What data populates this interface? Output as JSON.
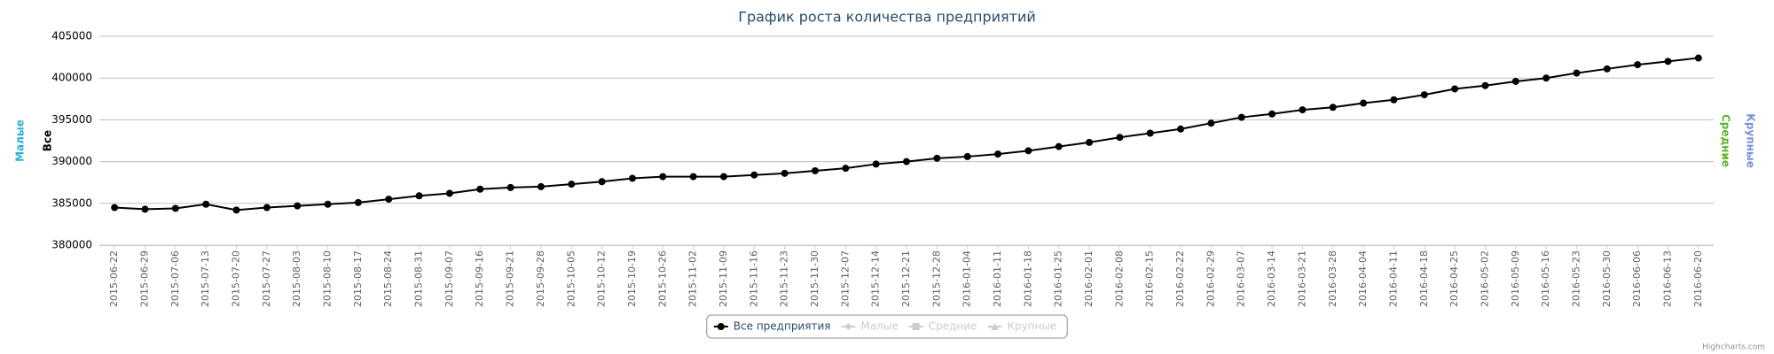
{
  "chart_data": {
    "type": "line",
    "title": "График роста количества предприятий",
    "categories": [
      "2015-06-22",
      "2015-06-29",
      "2015-07-06",
      "2015-07-13",
      "2015-07-20",
      "2015-07-27",
      "2015-08-03",
      "2015-08-10",
      "2015-08-17",
      "2015-08-24",
      "2015-08-31",
      "2015-09-07",
      "2015-09-16",
      "2015-09-21",
      "2015-09-28",
      "2015-10-05",
      "2015-10-12",
      "2015-10-19",
      "2015-10-26",
      "2015-11-02",
      "2015-11-09",
      "2015-11-16",
      "2015-11-23",
      "2015-11-30",
      "2015-12-07",
      "2015-12-14",
      "2015-12-21",
      "2015-12-28",
      "2016-01-04",
      "2016-01-11",
      "2016-01-18",
      "2016-01-25",
      "2016-02-01",
      "2016-02-08",
      "2016-02-15",
      "2016-02-22",
      "2016-02-29",
      "2016-03-07",
      "2016-03-14",
      "2016-03-21",
      "2016-03-28",
      "2016-04-04",
      "2016-04-11",
      "2016-04-18",
      "2016-04-25",
      "2016-05-02",
      "2016-05-09",
      "2016-05-16",
      "2016-05-23",
      "2016-05-30",
      "2016-06-06",
      "2016-06-13",
      "2016-06-20"
    ],
    "series": [
      {
        "name": "Все предприятия",
        "color": "#000000",
        "values": [
          384500,
          384300,
          384400,
          384900,
          384200,
          384500,
          384700,
          384900,
          385100,
          385500,
          385900,
          386200,
          386700,
          386900,
          387000,
          387300,
          387600,
          388000,
          388200,
          388200,
          388200,
          388400,
          388600,
          388900,
          389200,
          389700,
          390000,
          390400,
          390600,
          390900,
          391300,
          391800,
          392300,
          392900,
          393400,
          393900,
          394600,
          395300,
          395700,
          396200,
          396500,
          397000,
          397400,
          398000,
          398700,
          399100,
          399600,
          400000,
          400600,
          401100,
          401600,
          402000,
          402400
        ]
      }
    ],
    "hidden_series": [
      {
        "name": "Малые",
        "symbol": "diamond"
      },
      {
        "name": "Средние",
        "symbol": "square"
      },
      {
        "name": "Крупные",
        "symbol": "triangle"
      }
    ],
    "axis_titles": {
      "left": [
        {
          "text": "Малые",
          "color": "#2bb0d8"
        },
        {
          "text": "Все",
          "color": "#000000"
        }
      ],
      "right": [
        {
          "text": "Средние",
          "color": "#5ab52a"
        },
        {
          "text": "Крупные",
          "color": "#7b8fd6"
        }
      ]
    },
    "ylim": [
      380000,
      405000
    ],
    "yticks": [
      380000,
      385000,
      390000,
      395000,
      400000,
      405000
    ],
    "grid": true,
    "credits": "Highcharts.com"
  }
}
